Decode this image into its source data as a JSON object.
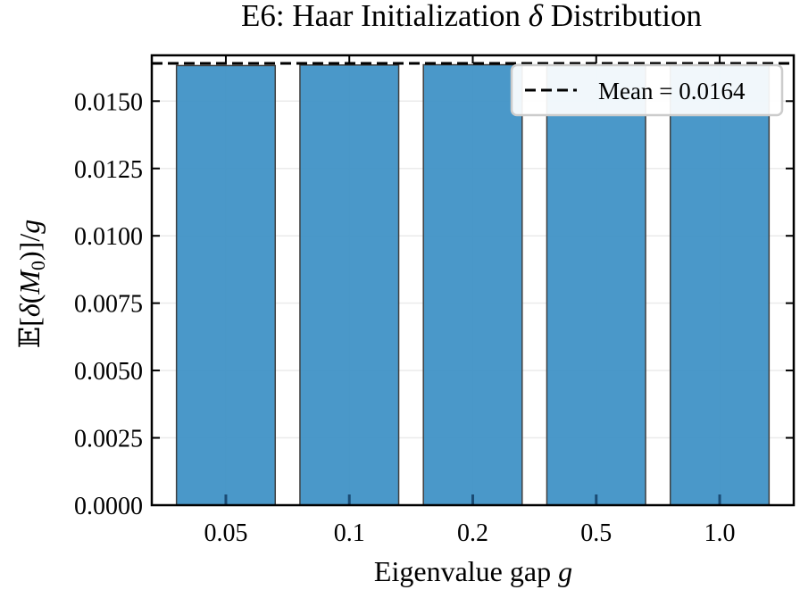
{
  "chart_data": {
    "type": "bar",
    "title": "E6: Haar Initialization δ Distribution",
    "title_parts": {
      "before": "E6: Haar Initialization ",
      "symbol": "δ",
      "after": " Distribution"
    },
    "xlabel": "Eigenvalue gap g",
    "xlabel_parts": {
      "text": "Eigenvalue gap ",
      "var": "g"
    },
    "ylabel": "𝔼[δ(M₀)]/g",
    "ylabel_parts": {
      "a": "𝔼[",
      "b": "δ",
      "c": "(",
      "d": "M",
      "e": "0",
      "f": ")]/",
      "g": "g"
    },
    "categories": [
      "0.05",
      "0.1",
      "0.2",
      "0.5",
      "1.0"
    ],
    "values": [
      0.01632,
      0.01634,
      0.01635,
      0.01632,
      0.01634
    ],
    "ylim": [
      0,
      0.0167
    ],
    "yticks": [
      0.0,
      0.0025,
      0.005,
      0.0075,
      0.01,
      0.0125,
      0.015
    ],
    "ytick_labels": [
      "0.0000",
      "0.0025",
      "0.0050",
      "0.0075",
      "0.0100",
      "0.0125",
      "0.0150"
    ],
    "mean_line": {
      "value": 0.0164,
      "label": "Mean = 0.0164"
    },
    "legend": {
      "location": "top-right",
      "entries": [
        "Mean = 0.0164"
      ]
    },
    "grid": true,
    "colors": {
      "bar": "#3b8fc4",
      "bar_edge": "#404040",
      "axis": "#000000",
      "grid": "#ebebeb",
      "mean_line": "#000000",
      "tick_mark": "#1a4b74"
    }
  }
}
